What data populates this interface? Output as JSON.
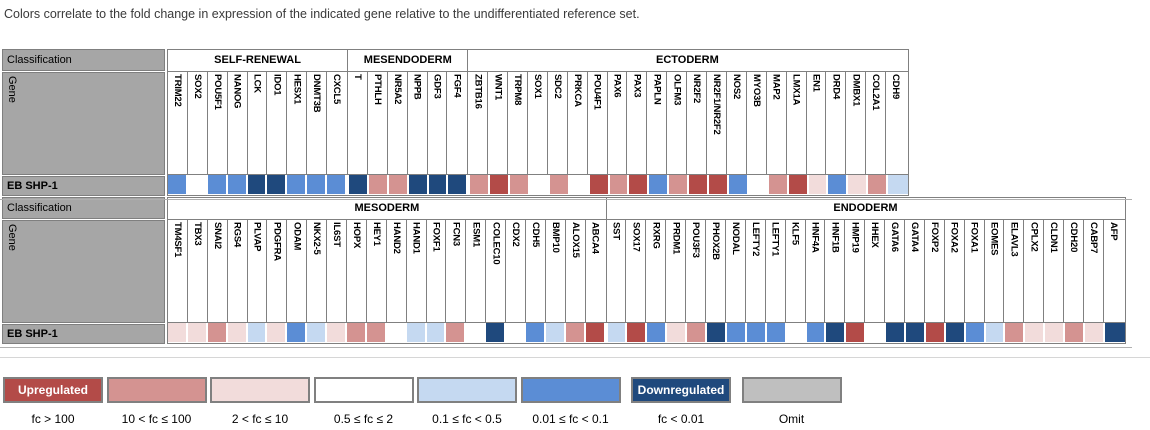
{
  "caption": "Colors correlate to the fold change in expression of the indicated gene relative to the undifferentiated reference set.",
  "levels": {
    "dr": {
      "color": "#B34B48",
      "label": "fc > 100"
    },
    "mr": {
      "color": "#D49391",
      "label": "10 < fc ≤ 100"
    },
    "lp": {
      "color": "#F2DCDB",
      "label": "2 < fc ≤ 10"
    },
    "w": {
      "color": "#FFFFFF",
      "label": "0.5 ≤ fc ≤ 2"
    },
    "lb": {
      "color": "#C5D9F1",
      "label": "0.1 ≤ fc < 0.5"
    },
    "mb": {
      "color": "#5B8DD5",
      "label": "0.01 ≤ fc < 0.1"
    },
    "db": {
      "color": "#1F497D",
      "label": "fc < 0.01"
    },
    "omit": {
      "color": "#BFBFBF",
      "label": "Omit"
    }
  },
  "chart_data": {
    "type": "heatmap",
    "sample_row": "EB SHP-1",
    "tables": [
      {
        "classification_label": "Classification",
        "gene_label": "Gene",
        "row_label": "EB SHP-1",
        "groups": [
          {
            "name": "SELF-RENEWAL",
            "genes": [
              "TRIM22",
              "SOX2",
              "POU5F1",
              "NANOG",
              "LCK",
              "IDO1",
              "HESX1",
              "DNMT3B",
              "CXCL5"
            ],
            "levels": [
              "mb",
              "w",
              "mb",
              "mb",
              "db",
              "db",
              "mb",
              "mb",
              "mb"
            ]
          },
          {
            "name": "MESENDODERM",
            "genes": [
              "T",
              "PTHLH",
              "NR5A2",
              "NPPB",
              "GDF3",
              "FGF4"
            ],
            "levels": [
              "db",
              "mr",
              "mr",
              "db",
              "db",
              "db"
            ]
          },
          {
            "name": "ECTODERM",
            "genes": [
              "ZBTB16",
              "WNT1",
              "TRPM8",
              "SOX1",
              "SDC2",
              "PRKCA",
              "POU4F1",
              "PAX6",
              "PAX3",
              "PAPLN",
              "OLFM3",
              "NR2F2",
              "NR2F1/NR2F2",
              "NOS2",
              "MYO3B",
              "MAP2",
              "LMX1A",
              "EN1",
              "DRD4",
              "DMBX1",
              "COL2A1",
              "CDH9"
            ],
            "levels": [
              "mr",
              "dr",
              "mr",
              "w",
              "mr",
              "w",
              "dr",
              "mr",
              "dr",
              "mb",
              "mr",
              "dr",
              "dr",
              "mb",
              "w",
              "mr",
              "dr",
              "lp",
              "mb",
              "lp",
              "mr",
              "lb"
            ]
          }
        ]
      },
      {
        "classification_label": "Classification",
        "gene_label": "Gene",
        "row_label": "EB SHP-1",
        "groups": [
          {
            "name": "MESODERM",
            "genes": [
              "TM4SF1",
              "TBX3",
              "SNAI2",
              "RGS4",
              "PLVAP",
              "PDGFRA",
              "ODAM",
              "NKX2-5",
              "IL6ST",
              "HOPX",
              "HEY1",
              "HAND2",
              "HAND1",
              "FOXF1",
              "FCN3",
              "ESM1",
              "COLEC10",
              "CDX2",
              "CDH5",
              "BMP10",
              "ALOX15",
              "ABCA4"
            ],
            "levels": [
              "lp",
              "lp",
              "mr",
              "lp",
              "lb",
              "lp",
              "mb",
              "lb",
              "lp",
              "mr",
              "mr",
              "w",
              "lb",
              "lb",
              "mr",
              "w",
              "db",
              "w",
              "mb",
              "lb",
              "mr",
              "dr"
            ]
          },
          {
            "name": "ENDODERM",
            "genes": [
              "SST",
              "SOX17",
              "RXRG",
              "PRDM1",
              "POU3F3",
              "PHOX2B",
              "NODAL",
              "LEFTY2",
              "LEFTY1",
              "KLF5",
              "HNF4A",
              "HNF1B",
              "HMP19",
              "HHEX",
              "GATA6",
              "GATA4",
              "FOXP2",
              "FOXA2",
              "FOXA1",
              "EOMES",
              "ELAVL3",
              "CPLX2",
              "CLDN1",
              "CDH20",
              "CABP7",
              "AFP"
            ],
            "levels": [
              "lb",
              "dr",
              "mb",
              "lp",
              "mr",
              "db",
              "mb",
              "mb",
              "mb",
              "w",
              "mb",
              "db",
              "dr",
              "w",
              "db",
              "db",
              "dr",
              "db",
              "mb",
              "lb",
              "mr",
              "lp",
              "lp",
              "mr",
              "lp",
              "db"
            ]
          }
        ]
      }
    ],
    "legend": [
      {
        "level": "dr",
        "box_text": "Upregulated",
        "caption": "fc > 100"
      },
      {
        "level": "mr",
        "box_text": "",
        "caption": "10 < fc ≤ 100"
      },
      {
        "level": "lp",
        "box_text": "",
        "caption": "2 < fc ≤ 10"
      },
      {
        "level": "w",
        "box_text": "",
        "caption": "0.5 ≤ fc ≤ 2"
      },
      {
        "level": "lb",
        "box_text": "",
        "caption": "0.1 ≤ fc < 0.5"
      },
      {
        "level": "mb",
        "box_text": "",
        "caption": "0.01 ≤ fc < 0.1"
      },
      {
        "level": "db",
        "box_text": "Downregulated",
        "caption": "fc < 0.01"
      },
      {
        "level": "omit",
        "box_text": "",
        "caption": "Omit"
      }
    ]
  }
}
